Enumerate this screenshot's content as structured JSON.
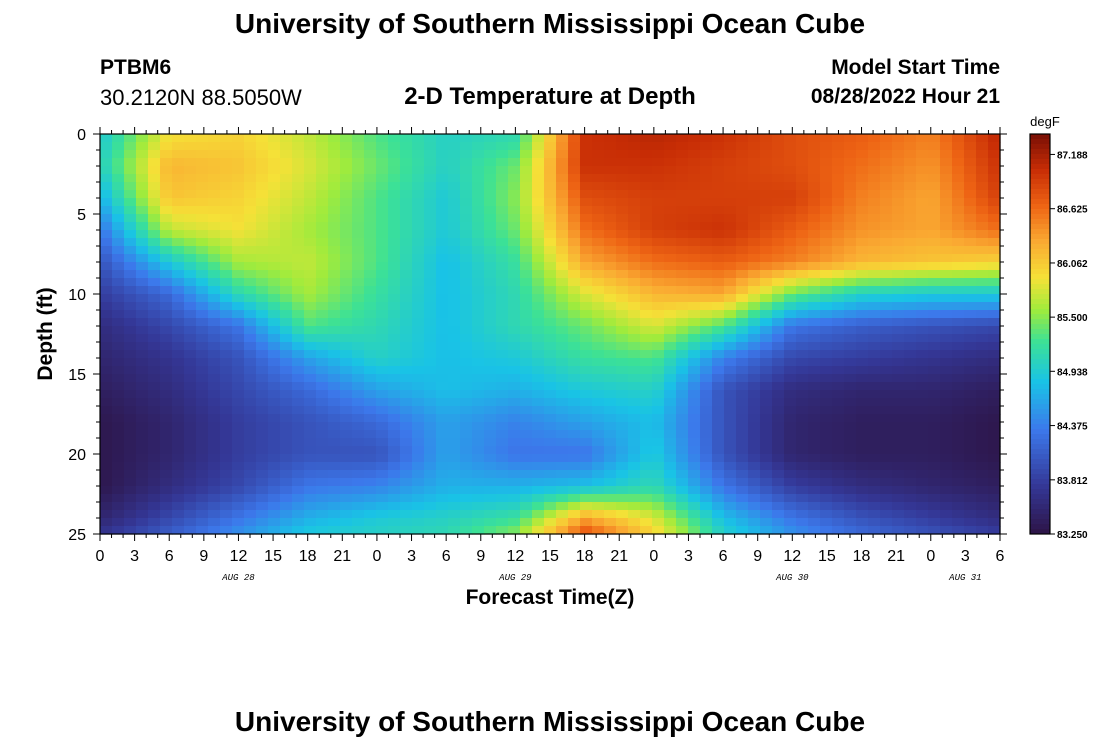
{
  "header": {
    "title": "University of Southern Mississippi Ocean Cube",
    "station_id": "PTBM6",
    "coordinates": "30.2120N  88.5050W",
    "subtitle": "2-D Temperature at Depth",
    "model_start_label": "Model Start Time",
    "model_start_value": "08/28/2022 Hour 21"
  },
  "footer": {
    "title": "University of Southern Mississippi Ocean Cube"
  },
  "chart_data": {
    "type": "heatmap",
    "title": "2-D Temperature at Depth",
    "xlabel": "Forecast Time(Z)",
    "ylabel": "Depth (ft)",
    "xlim_hours": [
      0,
      78
    ],
    "ylim": [
      0,
      25
    ],
    "x_tick_labels": [
      "0",
      "3",
      "6",
      "9",
      "12",
      "15",
      "18",
      "21",
      "0",
      "3",
      "6",
      "9",
      "12",
      "15",
      "18",
      "21",
      "0",
      "3",
      "6",
      "9",
      "12",
      "15",
      "18",
      "21",
      "0",
      "3",
      "6"
    ],
    "y_tick_labels": [
      "0",
      "5",
      "10",
      "15",
      "20",
      "25"
    ],
    "date_labels": [
      {
        "label": "AUG 28",
        "hour": 12
      },
      {
        "label": "AUG 29",
        "hour": 36
      },
      {
        "label": "AUG 30",
        "hour": 60
      },
      {
        "label": "AUG 31",
        "hour": 75
      }
    ],
    "colorbar": {
      "unit": "degF",
      "min": 83.25,
      "max": 87.4,
      "ticks": [
        "87.188",
        "86.625",
        "86.062",
        "85.500",
        "84.938",
        "84.375",
        "83.812",
        "83.250"
      ]
    },
    "depth_axis_ft": [
      0,
      2,
      4,
      6,
      8,
      10,
      12,
      14,
      16,
      18,
      20,
      22,
      24,
      25
    ],
    "time_axis_hours": [
      0,
      6,
      12,
      18,
      24,
      30,
      36,
      42,
      48,
      54,
      60,
      66,
      72,
      78
    ],
    "temperature_degF": [
      [
        84.9,
        85.9,
        86.0,
        85.7,
        85.3,
        85.0,
        85.1,
        87.0,
        87.1,
        87.0,
        86.8,
        86.7,
        86.5,
        87.1
      ],
      [
        85.0,
        86.2,
        86.1,
        85.8,
        85.4,
        85.0,
        85.4,
        87.0,
        87.0,
        86.9,
        86.8,
        86.6,
        86.4,
        87.0
      ],
      [
        84.7,
        86.1,
        86.0,
        85.7,
        85.3,
        84.9,
        85.5,
        86.8,
        86.9,
        86.9,
        86.9,
        86.5,
        86.3,
        86.9
      ],
      [
        84.3,
        85.7,
        85.9,
        85.6,
        85.3,
        84.9,
        85.4,
        86.6,
        86.9,
        87.0,
        86.7,
        86.4,
        86.3,
        86.6
      ],
      [
        84.0,
        84.9,
        85.6,
        85.7,
        85.3,
        84.8,
        85.2,
        86.3,
        86.6,
        86.7,
        86.5,
        86.2,
        86.1,
        86.0
      ],
      [
        83.8,
        84.2,
        85.1,
        85.6,
        85.2,
        84.8,
        85.1,
        85.8,
        86.2,
        86.3,
        85.4,
        85.0,
        84.9,
        84.9
      ],
      [
        83.6,
        83.9,
        84.3,
        85.3,
        85.1,
        84.8,
        85.1,
        85.4,
        85.8,
        85.3,
        84.3,
        84.1,
        84.0,
        83.9
      ],
      [
        83.5,
        83.7,
        84.0,
        84.6,
        85.0,
        84.8,
        84.9,
        85.2,
        85.3,
        84.4,
        83.9,
        83.8,
        83.7,
        83.6
      ],
      [
        83.4,
        83.6,
        83.9,
        84.2,
        84.6,
        84.8,
        84.7,
        84.9,
        85.0,
        84.0,
        83.6,
        83.5,
        83.5,
        83.4
      ],
      [
        83.3,
        83.5,
        83.8,
        84.0,
        84.2,
        84.6,
        84.4,
        84.6,
        84.8,
        84.0,
        83.5,
        83.4,
        83.4,
        83.3
      ],
      [
        83.3,
        83.5,
        83.8,
        84.0,
        84.0,
        84.6,
        84.3,
        84.3,
        84.9,
        84.0,
        83.5,
        83.4,
        83.4,
        83.3
      ],
      [
        83.3,
        83.6,
        83.9,
        84.3,
        84.4,
        84.7,
        84.7,
        84.8,
        85.1,
        84.3,
        83.8,
        83.6,
        83.5,
        83.4
      ],
      [
        83.5,
        83.9,
        84.3,
        84.7,
        84.9,
        85.0,
        85.2,
        86.3,
        85.8,
        84.8,
        84.3,
        84.0,
        83.8,
        83.6
      ],
      [
        83.7,
        84.1,
        84.5,
        84.9,
        85.0,
        85.1,
        85.5,
        86.8,
        86.0,
        85.0,
        84.5,
        84.2,
        84.0,
        83.8
      ]
    ]
  }
}
